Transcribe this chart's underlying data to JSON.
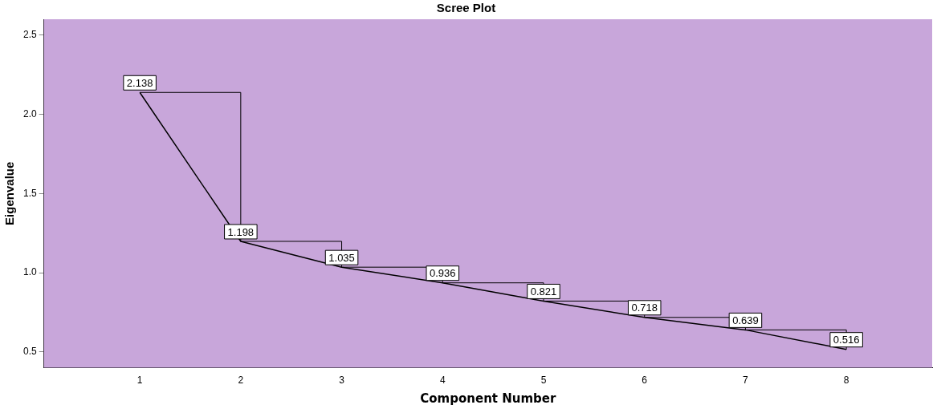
{
  "chart_data": {
    "type": "line",
    "title": "Scree Plot",
    "xlabel": "Component Number",
    "ylabel": "Eigenvalue",
    "x": [
      1,
      2,
      3,
      4,
      5,
      6,
      7,
      8
    ],
    "series": [
      {
        "color": "#000000",
        "values": [
          2.138,
          1.198,
          1.035,
          0.936,
          0.821,
          0.718,
          0.639,
          0.516
        ]
      }
    ],
    "xlim": [
      0.05,
      8.85
    ],
    "xticks": [
      1,
      2,
      3,
      4,
      5,
      6,
      7,
      8
    ],
    "ylim": [
      0.4,
      2.6
    ],
    "yticks": [
      {
        "value": 0.5,
        "label": "0.5"
      },
      {
        "value": 1.0,
        "label": "1.0"
      },
      {
        "value": 1.5,
        "label": "1.5"
      },
      {
        "value": 2.0,
        "label": "2.0"
      },
      {
        "value": 2.5,
        "label": "2.5"
      }
    ],
    "grid": false,
    "legend": false,
    "line_style": "solid",
    "data_labels": true
  }
}
